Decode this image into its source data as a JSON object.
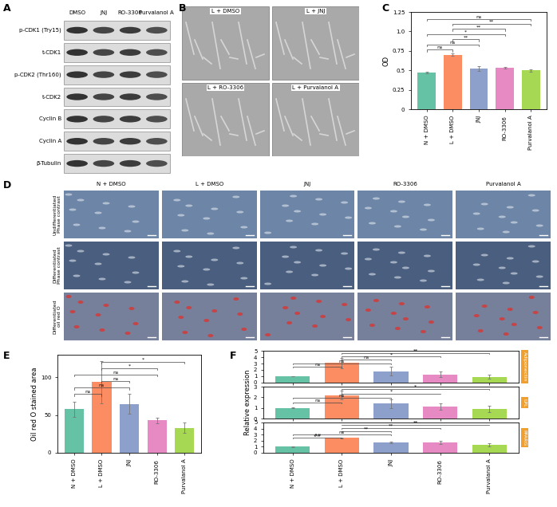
{
  "figure": {
    "A": {
      "panel": "A",
      "lanes": [
        "DMSO",
        "JNJ",
        "RO-3306",
        "Purvalanol A"
      ],
      "rows": [
        "p-CDK1 (Try15)",
        "t-CDK1",
        "p-CDK2 (Thr160)",
        "t-CDK2",
        "Cyclin B",
        "Cyclin A",
        "β-Tubulin"
      ]
    },
    "B": {
      "panel": "B",
      "images": [
        "L + DMSO",
        "L + JNJ",
        "L + RO-3306",
        "L + Purvalanol A"
      ]
    },
    "D": {
      "panel": "D",
      "columns": [
        "N + DMSO",
        "L + DMSO",
        "JNJ",
        "RO-3306",
        "Purvalanol A"
      ],
      "rows": [
        "Undifferentiated\nPhase contrast",
        "Differentiated\nPhase contrast",
        "Differentiated\noil red O"
      ]
    }
  },
  "chart_data": [
    {
      "panel": "C",
      "type": "bar",
      "categories": [
        "N + DMSO",
        "L + DMSO",
        "JNJ",
        "RO-3306",
        "Purvalanol A"
      ],
      "values": [
        0.47,
        0.7,
        0.52,
        0.53,
        0.5
      ],
      "errors": [
        0.01,
        0.015,
        0.03,
        0.01,
        0.015
      ],
      "colors": [
        "#66c2a5",
        "#fc8d62",
        "#8da0cb",
        "#e78ac3",
        "#a6d854"
      ],
      "y_label": "OD",
      "ylim": [
        0,
        1.25
      ],
      "yticks": [
        0,
        0.25,
        0.5,
        0.75,
        {
          "value": 1.0,
          "label": "1.0"
        },
        1.25
      ],
      "significance": [
        {
          "pair": [
            0,
            1
          ],
          "text": "ns"
        },
        {
          "pair": [
            0,
            2
          ],
          "text": "ns"
        },
        {
          "pair": [
            1,
            2
          ],
          "text": "**"
        },
        {
          "pair": [
            0,
            3
          ],
          "text": "*"
        },
        {
          "pair": [
            1,
            3
          ],
          "text": "**"
        },
        {
          "pair": [
            1,
            4
          ],
          "text": "**"
        },
        {
          "pair": [
            0,
            4
          ],
          "text": "ns"
        }
      ]
    },
    {
      "panel": "E",
      "type": "bar",
      "categories": [
        "N + DMSO",
        "L + DMSO",
        "JNJ",
        "RO-3306",
        "Purvalanol A"
      ],
      "values": [
        58,
        94,
        65,
        43,
        33
      ],
      "errors": [
        10,
        28,
        13,
        4,
        7
      ],
      "colors": [
        "#66c2a5",
        "#fc8d62",
        "#8da0cb",
        "#e78ac3",
        "#a6d854"
      ],
      "y_label": "Oil red O stained area",
      "ylim": [
        0,
        130
      ],
      "yticks": [
        0,
        50,
        100
      ],
      "significance": [
        {
          "pair": [
            0,
            1
          ],
          "text": "ns"
        },
        {
          "pair": [
            0,
            2
          ],
          "text": "ns"
        },
        {
          "pair": [
            1,
            2
          ],
          "text": "ns"
        },
        {
          "pair": [
            0,
            3
          ],
          "text": "ns"
        },
        {
          "pair": [
            1,
            3
          ],
          "text": "*"
        },
        {
          "pair": [
            1,
            4
          ],
          "text": "*"
        }
      ]
    },
    {
      "panel": "F",
      "type": "bar",
      "title": "Adiponectin",
      "categories": [
        "N + DMSO",
        "L + DMSO",
        "JNJ",
        "RO-3306",
        "Purvalanol A"
      ],
      "values": [
        1.0,
        3.1,
        1.8,
        1.3,
        0.9
      ],
      "errors": [
        0.05,
        0.8,
        0.7,
        0.4,
        0.3
      ],
      "colors": [
        "#66c2a5",
        "#fc8d62",
        "#8da0cb",
        "#e78ac3",
        "#a6d854"
      ],
      "ylim": [
        0,
        5
      ],
      "yticks": [
        0,
        1,
        2,
        3,
        4,
        5
      ],
      "tick_labels": "y",
      "significance": [
        {
          "pair": [
            0,
            1
          ],
          "text": "ns"
        },
        {
          "pair": [
            0,
            2
          ],
          "text": "ns"
        },
        {
          "pair": [
            1,
            2
          ],
          "text": "ns"
        },
        {
          "pair": [
            1,
            3
          ],
          "text": "*"
        },
        {
          "pair": [
            1,
            4
          ],
          "text": "**"
        }
      ]
    },
    {
      "type": "bar",
      "title": "LPL",
      "categories": [
        "N + DMSO",
        "L + DMSO",
        "JNJ",
        "RO-3306",
        "Purvalanol A"
      ],
      "values": [
        1.0,
        2.2,
        1.4,
        1.1,
        0.9
      ],
      "errors": [
        0.05,
        0.4,
        0.4,
        0.3,
        0.3
      ],
      "colors": [
        "#66c2a5",
        "#fc8d62",
        "#8da0cb",
        "#e78ac3",
        "#a6d854"
      ],
      "y_label": "Relative expression",
      "ylim": [
        0,
        3
      ],
      "yticks": [
        0,
        1,
        2,
        3
      ],
      "tick_labels": "y",
      "significance": [
        {
          "pair": [
            0,
            1
          ],
          "text": "ns"
        },
        {
          "pair": [
            0,
            2
          ],
          "text": "ns"
        },
        {
          "pair": [
            1,
            3
          ],
          "text": "*"
        },
        {
          "pair": [
            1,
            4
          ],
          "text": "*"
        }
      ]
    },
    {
      "type": "bar",
      "title": "PPARG",
      "categories": [
        "N + DMSO",
        "L + DMSO",
        "JNJ",
        "RO-3306",
        "Purvalanol A"
      ],
      "values": [
        1.0,
        2.45,
        1.75,
        1.7,
        1.3
      ],
      "errors": [
        0.05,
        0.05,
        0.15,
        0.3,
        0.3
      ],
      "colors": [
        "#66c2a5",
        "#fc8d62",
        "#8da0cb",
        "#e78ac3",
        "#a6d854"
      ],
      "ylim": [
        0,
        5
      ],
      "yticks": [
        0,
        1,
        2,
        3,
        4,
        5
      ],
      "significance": [
        {
          "pair": [
            0,
            1
          ],
          "text": "##"
        },
        {
          "pair": [
            0,
            2
          ],
          "text": "ns"
        },
        {
          "pair": [
            1,
            2
          ],
          "text": "**"
        },
        {
          "pair": [
            1,
            3
          ],
          "text": "**"
        },
        {
          "pair": [
            1,
            4
          ],
          "text": "**"
        }
      ]
    }
  ]
}
